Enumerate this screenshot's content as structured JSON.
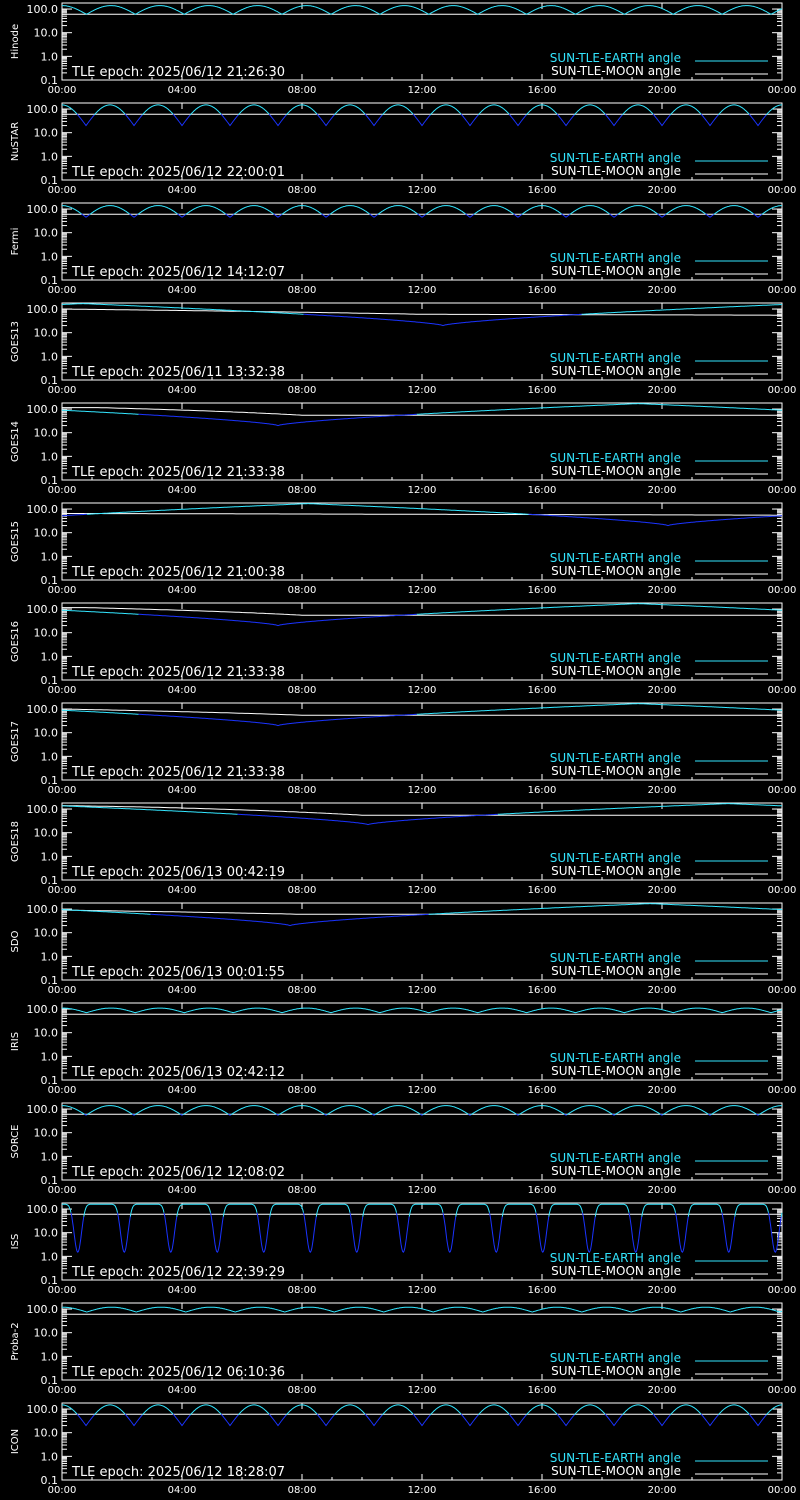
{
  "colors": {
    "earth": "#33e6ff",
    "moon": "#ffffff",
    "earth_dip": "#1a33ff",
    "axis": "#ffffff",
    "background": "#000000"
  },
  "legend": {
    "earth": "SUN-TLE-EARTH angle",
    "moon": "SUN-TLE-MOON angle"
  },
  "chart_data": [
    {
      "type": "line",
      "satellite": "Hinode",
      "epoch": "TLE epoch: 2025/06/12 21:26:30",
      "yscale": "log",
      "ylim": [
        0.1,
        180
      ],
      "xlim_hours": [
        0,
        24
      ],
      "xticks": [
        "00:00",
        "04:00",
        "08:00",
        "12:00",
        "16:00",
        "20:00",
        "00:00"
      ],
      "yticks": [
        "0.1",
        "1.0",
        "10.0",
        "100.0"
      ],
      "earth_mode": "orbit",
      "earth_period_h": 1.63,
      "earth_max": 140,
      "earth_min": 60,
      "moon": [
        [
          0,
          60
        ],
        [
          24,
          60
        ]
      ]
    },
    {
      "type": "line",
      "satellite": "NuSTAR",
      "epoch": "TLE epoch: 2025/06/12 22:00:01",
      "yscale": "log",
      "ylim": [
        0.1,
        180
      ],
      "xlim_hours": [
        0,
        24
      ],
      "xticks": [
        "00:00",
        "04:00",
        "08:00",
        "12:00",
        "16:00",
        "20:00",
        "00:00"
      ],
      "yticks": [
        "0.1",
        "1.0",
        "10.0",
        "100.0"
      ],
      "earth_mode": "orbit",
      "earth_period_h": 1.6,
      "earth_max": 150,
      "earth_min": 20,
      "moon": [
        [
          0,
          60
        ],
        [
          24,
          60
        ]
      ]
    },
    {
      "type": "line",
      "satellite": "Fermi",
      "epoch": "TLE epoch: 2025/06/12 14:12:07",
      "yscale": "log",
      "ylim": [
        0.1,
        180
      ],
      "xlim_hours": [
        0,
        24
      ],
      "xticks": [
        "00:00",
        "04:00",
        "08:00",
        "12:00",
        "16:00",
        "20:00",
        "00:00"
      ],
      "yticks": [
        "0.1",
        "1.0",
        "10.0",
        "100.0"
      ],
      "earth_mode": "orbit",
      "earth_period_h": 1.6,
      "earth_max": 140,
      "earth_min": 45,
      "moon": [
        [
          0,
          60
        ],
        [
          24,
          60
        ]
      ]
    },
    {
      "type": "line",
      "satellite": "GOES13",
      "epoch": "TLE epoch: 2025/06/11 13:32:38",
      "yscale": "log",
      "ylim": [
        0.1,
        180
      ],
      "xlim_hours": [
        0,
        24
      ],
      "xticks": [
        "00:00",
        "04:00",
        "08:00",
        "12:00",
        "16:00",
        "20:00",
        "00:00"
      ],
      "yticks": [
        "0.1",
        "1.0",
        "10.0",
        "100.0"
      ],
      "earth_mode": "geo",
      "earth_min_time_h": 12.7,
      "earth_max": 170,
      "earth_min": 20,
      "moon": [
        [
          0,
          100
        ],
        [
          12,
          60
        ],
        [
          24,
          55
        ]
      ]
    },
    {
      "type": "line",
      "satellite": "GOES14",
      "epoch": "TLE epoch: 2025/06/12 21:33:38",
      "yscale": "log",
      "ylim": [
        0.1,
        180
      ],
      "xlim_hours": [
        0,
        24
      ],
      "xticks": [
        "00:00",
        "04:00",
        "08:00",
        "12:00",
        "16:00",
        "20:00",
        "00:00"
      ],
      "yticks": [
        "0.1",
        "1.0",
        "10.0",
        "100.0"
      ],
      "earth_mode": "geo",
      "earth_min_time_h": 7.2,
      "earth_max": 170,
      "earth_min": 20,
      "moon": [
        [
          0,
          115
        ],
        [
          1.2,
          115
        ],
        [
          8,
          55
        ],
        [
          24,
          55
        ]
      ]
    },
    {
      "type": "line",
      "satellite": "GOES15",
      "epoch": "TLE epoch: 2025/06/12 21:00:38",
      "yscale": "log",
      "ylim": [
        0.1,
        180
      ],
      "xlim_hours": [
        0,
        24
      ],
      "xticks": [
        "00:00",
        "04:00",
        "08:00",
        "12:00",
        "16:00",
        "20:00",
        "00:00"
      ],
      "yticks": [
        "0.1",
        "1.0",
        "10.0",
        "100.0"
      ],
      "earth_mode": "geo",
      "earth_min_time_h": 20.2,
      "earth_max": 170,
      "earth_min": 20,
      "moon": [
        [
          0,
          65
        ],
        [
          24,
          55
        ]
      ]
    },
    {
      "type": "line",
      "satellite": "GOES16",
      "epoch": "TLE epoch: 2025/06/12 21:33:38",
      "yscale": "log",
      "ylim": [
        0.1,
        180
      ],
      "xlim_hours": [
        0,
        24
      ],
      "xticks": [
        "00:00",
        "04:00",
        "08:00",
        "12:00",
        "16:00",
        "20:00",
        "00:00"
      ],
      "yticks": [
        "0.1",
        "1.0",
        "10.0",
        "100.0"
      ],
      "earth_mode": "geo",
      "earth_min_time_h": 7.2,
      "earth_max": 170,
      "earth_min": 20,
      "moon": [
        [
          0,
          115
        ],
        [
          0.8,
          115
        ],
        [
          8,
          55
        ],
        [
          24,
          55
        ]
      ]
    },
    {
      "type": "line",
      "satellite": "GOES17",
      "epoch": "TLE epoch: 2025/06/12 21:33:38",
      "yscale": "log",
      "ylim": [
        0.1,
        180
      ],
      "xlim_hours": [
        0,
        24
      ],
      "xticks": [
        "00:00",
        "04:00",
        "08:00",
        "12:00",
        "16:00",
        "20:00",
        "00:00"
      ],
      "yticks": [
        "0.1",
        "1.0",
        "10.0",
        "100.0"
      ],
      "earth_mode": "geo",
      "earth_min_time_h": 7.2,
      "earth_max": 170,
      "earth_min": 20,
      "moon": [
        [
          0,
          100
        ],
        [
          8,
          55
        ],
        [
          24,
          55
        ]
      ]
    },
    {
      "type": "line",
      "satellite": "GOES18",
      "epoch": "TLE epoch: 2025/06/13 00:42:19",
      "yscale": "log",
      "ylim": [
        0.1,
        180
      ],
      "xlim_hours": [
        0,
        24
      ],
      "xticks": [
        "00:00",
        "04:00",
        "08:00",
        "12:00",
        "16:00",
        "20:00",
        "00:00"
      ],
      "yticks": [
        "0.1",
        "1.0",
        "10.0",
        "100.0"
      ],
      "earth_mode": "geo",
      "earth_min_time_h": 10.2,
      "earth_max": 170,
      "earth_min": 22,
      "moon": [
        [
          0,
          140
        ],
        [
          3,
          120
        ],
        [
          10,
          55
        ],
        [
          24,
          55
        ]
      ]
    },
    {
      "type": "line",
      "satellite": "SDO",
      "epoch": "TLE epoch: 2025/06/13 00:01:55",
      "yscale": "log",
      "ylim": [
        0.1,
        180
      ],
      "xlim_hours": [
        0,
        24
      ],
      "xticks": [
        "00:00",
        "04:00",
        "08:00",
        "12:00",
        "16:00",
        "20:00",
        "00:00"
      ],
      "yticks": [
        "0.1",
        "1.0",
        "10.0",
        "100.0"
      ],
      "earth_mode": "geo",
      "earth_min_time_h": 7.6,
      "earth_max": 170,
      "earth_min": 20,
      "moon": [
        [
          0,
          90
        ],
        [
          8,
          60
        ],
        [
          24,
          60
        ]
      ]
    },
    {
      "type": "line",
      "satellite": "IRIS",
      "epoch": "TLE epoch: 2025/06/13 02:42:12",
      "yscale": "log",
      "ylim": [
        0.1,
        180
      ],
      "xlim_hours": [
        0,
        24
      ],
      "xticks": [
        "00:00",
        "04:00",
        "08:00",
        "12:00",
        "16:00",
        "20:00",
        "00:00"
      ],
      "yticks": [
        "0.1",
        "1.0",
        "10.0",
        "100.0"
      ],
      "earth_mode": "orbit",
      "earth_period_h": 1.63,
      "earth_max": 110,
      "earth_min": 70,
      "moon": [
        [
          0,
          60
        ],
        [
          24,
          60
        ]
      ]
    },
    {
      "type": "line",
      "satellite": "SORCE",
      "epoch": "TLE epoch: 2025/06/12 12:08:02",
      "yscale": "log",
      "ylim": [
        0.1,
        180
      ],
      "xlim_hours": [
        0,
        24
      ],
      "xticks": [
        "00:00",
        "04:00",
        "08:00",
        "12:00",
        "16:00",
        "20:00",
        "00:00"
      ],
      "yticks": [
        "0.1",
        "1.0",
        "10.0",
        "100.0"
      ],
      "earth_mode": "orbit",
      "earth_period_h": 1.6,
      "earth_max": 140,
      "earth_min": 55,
      "moon": [
        [
          0,
          60
        ],
        [
          24,
          60
        ]
      ]
    },
    {
      "type": "line",
      "satellite": "ISS",
      "epoch": "TLE epoch: 2025/06/12 22:39:29",
      "yscale": "log",
      "ylim": [
        0.1,
        180
      ],
      "xlim_hours": [
        0,
        24
      ],
      "xticks": [
        "00:00",
        "04:00",
        "08:00",
        "12:00",
        "16:00",
        "20:00",
        "00:00"
      ],
      "yticks": [
        "0.1",
        "1.0",
        "10.0",
        "100.0"
      ],
      "earth_mode": "orbit",
      "earth_period_h": 1.55,
      "earth_max": 160,
      "earth_min": 1.5,
      "earth_min_phase_h": 1.3,
      "moon": [
        [
          0,
          60
        ],
        [
          24,
          60
        ]
      ]
    },
    {
      "type": "line",
      "satellite": "Proba-2",
      "epoch": "TLE epoch: 2025/06/12 06:10:36",
      "yscale": "log",
      "ylim": [
        0.1,
        180
      ],
      "xlim_hours": [
        0,
        24
      ],
      "xticks": [
        "00:00",
        "04:00",
        "08:00",
        "12:00",
        "16:00",
        "20:00",
        "00:00"
      ],
      "yticks": [
        "0.1",
        "1.0",
        "10.0",
        "100.0"
      ],
      "earth_mode": "orbit",
      "earth_period_h": 1.65,
      "earth_max": 120,
      "earth_min": 75,
      "moon": [
        [
          0,
          60
        ],
        [
          24,
          60
        ]
      ]
    },
    {
      "type": "line",
      "satellite": "ICON",
      "epoch": "TLE epoch: 2025/06/12 18:28:07",
      "yscale": "log",
      "ylim": [
        0.1,
        180
      ],
      "xlim_hours": [
        0,
        24
      ],
      "xticks": [
        "00:00",
        "04:00",
        "08:00",
        "12:00",
        "16:00",
        "20:00",
        "00:00"
      ],
      "yticks": [
        "0.1",
        "1.0",
        "10.0",
        "100.0"
      ],
      "earth_mode": "orbit",
      "earth_period_h": 1.6,
      "earth_max": 150,
      "earth_min": 20,
      "moon": [
        [
          0,
          60
        ],
        [
          24,
          60
        ]
      ]
    }
  ]
}
